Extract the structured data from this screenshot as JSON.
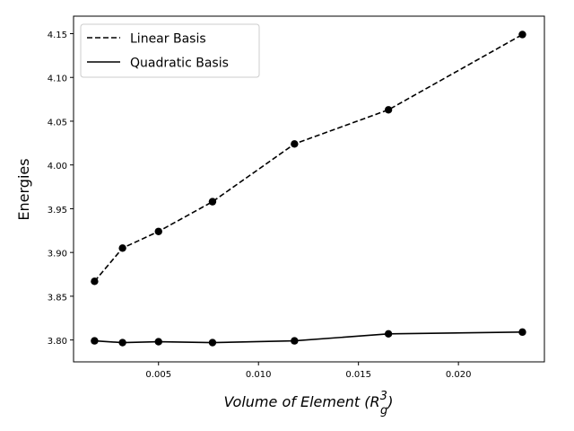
{
  "chart_data": {
    "type": "line",
    "title": "",
    "xlabel": "Volume of Element",
    "xlabel_math": {
      "base": "R",
      "sub": "g",
      "sup": "3"
    },
    "ylabel": "Energies",
    "xlim": [
      0.00075,
      0.0243
    ],
    "ylim": [
      3.775,
      4.17
    ],
    "xticks": [
      {
        "value": 0.005,
        "label": "0.005"
      },
      {
        "value": 0.01,
        "label": "0.010"
      },
      {
        "value": 0.015,
        "label": "0.015"
      },
      {
        "value": 0.02,
        "label": "0.020"
      }
    ],
    "yticks": [
      {
        "value": 3.8,
        "label": "3.80"
      },
      {
        "value": 3.85,
        "label": "3.85"
      },
      {
        "value": 3.9,
        "label": "3.90"
      },
      {
        "value": 3.95,
        "label": "3.95"
      },
      {
        "value": 4.0,
        "label": "4.00"
      },
      {
        "value": 4.05,
        "label": "4.05"
      },
      {
        "value": 4.1,
        "label": "4.10"
      },
      {
        "value": 4.15,
        "label": "4.15"
      }
    ],
    "x": [
      0.0018,
      0.0032,
      0.005,
      0.0077,
      0.0118,
      0.0165,
      0.0232
    ],
    "series": [
      {
        "name": "Linear Basis",
        "style": "dashed",
        "color": "#000000",
        "values": [
          3.867,
          3.905,
          3.924,
          3.958,
          4.024,
          4.063,
          4.149
        ]
      },
      {
        "name": "Quadratic Basis",
        "style": "solid",
        "color": "#000000",
        "values": [
          3.799,
          3.797,
          3.798,
          3.797,
          3.799,
          3.807,
          3.809
        ]
      }
    ],
    "legend": "top-left",
    "grid": false
  }
}
